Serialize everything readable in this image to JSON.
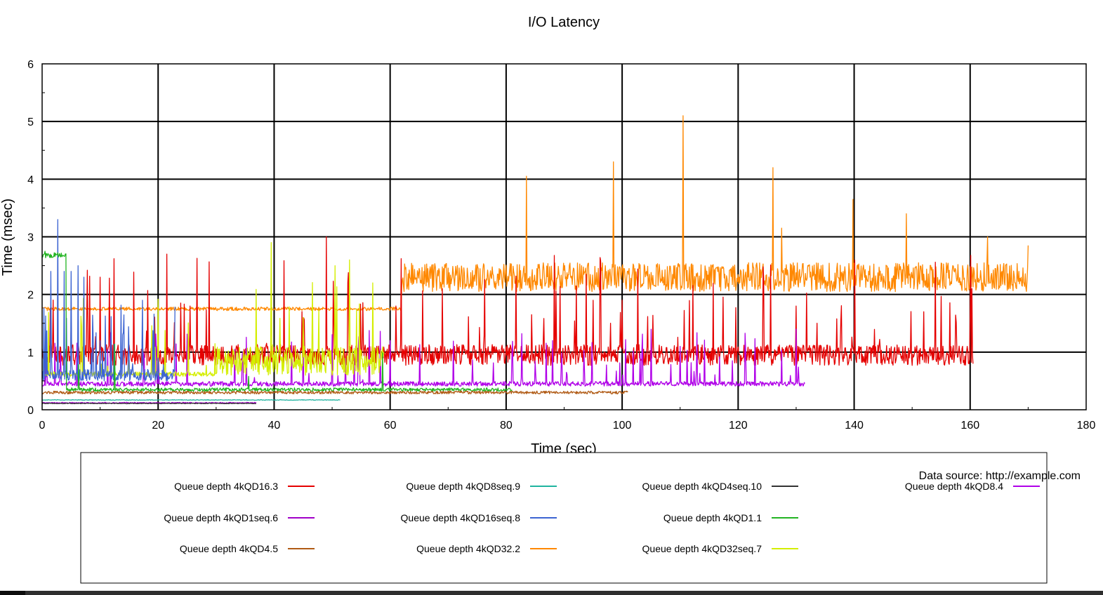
{
  "chart_data": {
    "type": "line",
    "title": "I/O Latency",
    "xlabel": "Time (sec)",
    "ylabel": "Time (msec)",
    "xlim": [
      0,
      180
    ],
    "ylim": [
      0,
      6
    ],
    "xticks": [
      "0",
      "20",
      "40",
      "60",
      "80",
      "100",
      "120",
      "140",
      "160",
      "180"
    ],
    "yticks": [
      "0",
      "1",
      "2",
      "3",
      "4",
      "5",
      "6"
    ],
    "grid": true,
    "source_note": "Data source: http://example.com",
    "series": [
      {
        "name": "Queue depth 4kQD16.3",
        "color": "#e50000",
        "x_end": 160.5,
        "base": 0.95,
        "noise": 0.18,
        "spike_count": 90,
        "spike_max": 3.0,
        "peaks": [
          [
            5,
            1.5
          ],
          [
            10,
            2.3
          ],
          [
            21.5,
            2.7
          ],
          [
            49,
            3.0
          ],
          [
            61,
            1.8
          ],
          [
            69,
            2.1
          ],
          [
            95,
            1.9
          ],
          [
            100,
            1.9
          ],
          [
            130,
            1.8
          ],
          [
            152,
            1.7
          ],
          [
            160,
            1.7
          ]
        ]
      },
      {
        "name": "Queue depth 4kQD1seq.6",
        "color": "#a000c8",
        "x_end": 37,
        "base": 0.12,
        "noise": 0.01,
        "spike_count": 0,
        "spike_max": 0.15,
        "peaks": []
      },
      {
        "name": "Queue depth 4kQD4.5",
        "color": "#b05a14",
        "x_end": 101,
        "base": 0.3,
        "noise": 0.025,
        "spike_count": 0,
        "spike_max": 0.4,
        "peaks": []
      },
      {
        "name": "Queue depth 4kQD8seq.9",
        "color": "#1fb4a0",
        "x_end": 51.5,
        "base": 0.17,
        "noise": 0.005,
        "spike_count": 0,
        "spike_max": 0.2,
        "peaks": []
      },
      {
        "name": "Queue depth 4kQD16seq.8",
        "color": "#3c64d2",
        "x_end": 23,
        "base": 0.6,
        "noise": 0.1,
        "spike_count": 24,
        "spike_max": 3.3,
        "peaks": [
          [
            1.5,
            2.4
          ],
          [
            2.7,
            3.3
          ],
          [
            3.8,
            2.4
          ],
          [
            5.0,
            2.4
          ],
          [
            6.2,
            2.5
          ],
          [
            7.2,
            2.3
          ],
          [
            10,
            1.2
          ],
          [
            15,
            1.0
          ],
          [
            20,
            0.9
          ]
        ]
      },
      {
        "name": "Queue depth 4kQD32.2",
        "color": "#ff8800",
        "x_end": 170,
        "base": 1.75,
        "noise": 0.03,
        "spike_count": 0,
        "spike_max": 5.1,
        "phase2_start": 62,
        "phase2_base": 2.3,
        "phase2_noise": 0.25,
        "peaks": [
          [
            83.5,
            4.05
          ],
          [
            98.5,
            4.3
          ],
          [
            110.5,
            5.1
          ],
          [
            126,
            4.2
          ],
          [
            127.5,
            3.15
          ],
          [
            139.8,
            3.65
          ],
          [
            149,
            3.4
          ],
          [
            163,
            3.0
          ],
          [
            170,
            2.85
          ]
        ]
      },
      {
        "name": "Queue depth 4kQD4seq.10",
        "color": "#333333",
        "x_end": 37,
        "base": 0.11,
        "noise": 0.006,
        "spike_count": 0,
        "spike_max": 0.13,
        "peaks": []
      },
      {
        "name": "Queue depth 4kQD1.1",
        "color": "#22b422",
        "x_end": 81,
        "base": 0.35,
        "noise": 0.03,
        "spike_count": 4,
        "spike_max": 2.75,
        "phase0_end": 4.2,
        "phase0_base": 2.68,
        "peaks": [
          [
            0.5,
            2.75
          ],
          [
            4.0,
            2.7
          ]
        ]
      },
      {
        "name": "Queue depth 4kQD32seq.7",
        "color": "#d4ee00",
        "x_end": 59,
        "base": 0.62,
        "noise": 0.04,
        "spike_count": 30,
        "spike_max": 2.9,
        "phase1_start": 30,
        "phase1_base": 0.85,
        "phase1_noise": 0.25,
        "peaks": [
          [
            39.5,
            2.9
          ],
          [
            50.5,
            2.5
          ],
          [
            53,
            2.6
          ],
          [
            57,
            2.2
          ],
          [
            45,
            1.6
          ]
        ]
      },
      {
        "name": "Queue depth 4kQD8.4",
        "color": "#b000e8",
        "x_end": 131.5,
        "base": 0.45,
        "noise": 0.04,
        "spike_count": 70,
        "spike_max": 1.4,
        "peaks": [
          [
            130,
            1.4
          ],
          [
            88,
            1.2
          ],
          [
            60,
            1.2
          ],
          [
            110,
            1.1
          ]
        ]
      }
    ]
  }
}
